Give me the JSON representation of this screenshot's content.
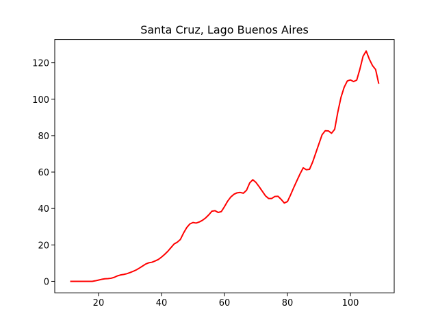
{
  "chart_data": {
    "type": "line",
    "title": "Santa Cruz, Lago Buenos Aires",
    "x": [
      11,
      12,
      13,
      14,
      15,
      16,
      17,
      18,
      19,
      20,
      21,
      22,
      23,
      24,
      25,
      26,
      27,
      28,
      29,
      30,
      31,
      32,
      33,
      34,
      35,
      36,
      37,
      38,
      39,
      40,
      41,
      42,
      43,
      44,
      45,
      46,
      47,
      48,
      49,
      50,
      51,
      52,
      53,
      54,
      55,
      56,
      57,
      58,
      59,
      60,
      61,
      62,
      63,
      64,
      65,
      66,
      67,
      68,
      69,
      70,
      71,
      72,
      73,
      74,
      75,
      76,
      77,
      78,
      79,
      80,
      81,
      82,
      83,
      84,
      85,
      86,
      87,
      88,
      89,
      90,
      91,
      92,
      93,
      94,
      95,
      96,
      97,
      98,
      99,
      100,
      101,
      102,
      103,
      104,
      105,
      106,
      107,
      108,
      109
    ],
    "series": [
      {
        "color": "#ff0000",
        "values": [
          0,
          0,
          0,
          0,
          0,
          0,
          0,
          0,
          0.3,
          0.7,
          1.1,
          1.4,
          1.5,
          1.7,
          2.2,
          3,
          3.5,
          3.8,
          4.2,
          4.8,
          5.5,
          6.3,
          7.3,
          8.4,
          9.5,
          10.2,
          10.5,
          11.2,
          12,
          13.3,
          14.8,
          16.5,
          18.5,
          20.5,
          21.5,
          23,
          26.5,
          29.5,
          31.5,
          32.3,
          32,
          32.6,
          33.5,
          34.8,
          36.5,
          38.5,
          38.8,
          37.8,
          38.3,
          41,
          44,
          46.3,
          47.8,
          48.6,
          48.8,
          48.4,
          50,
          54,
          55.8,
          54.3,
          52,
          49.5,
          47,
          45.5,
          45.5,
          46.6,
          46.7,
          45,
          43,
          43.8,
          47.5,
          51.5,
          55.3,
          59,
          62.3,
          61.3,
          61.5,
          65.5,
          70.5,
          75.5,
          80.5,
          82.7,
          82.6,
          81.3,
          83.5,
          93,
          101,
          106.5,
          110,
          110.6,
          109.7,
          110.5,
          116.5,
          123.5,
          126.5,
          122,
          118.5,
          116.3,
          108.5
        ]
      }
    ],
    "xlim": [
      6.1,
      113.9
    ],
    "ylim": [
      -6.3,
      132.8
    ],
    "xticks": [
      20,
      40,
      60,
      80,
      100
    ],
    "yticks": [
      0,
      20,
      40,
      60,
      80,
      100,
      120
    ]
  }
}
